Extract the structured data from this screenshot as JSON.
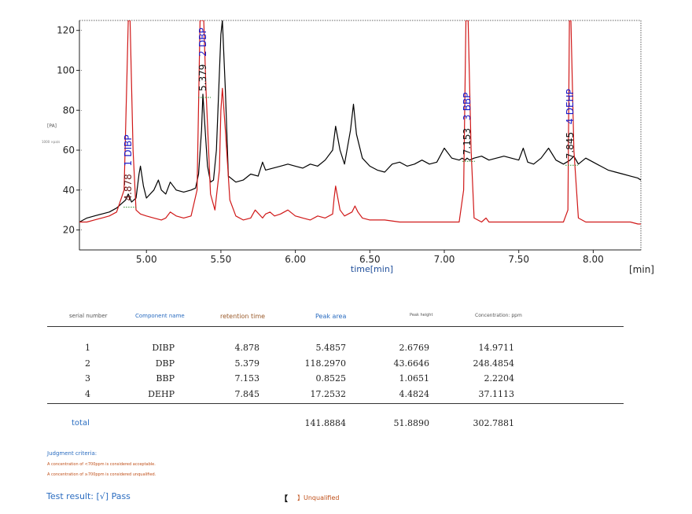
{
  "chart_data": {
    "type": "line",
    "xlabel": "time[min]",
    "x_unit_label": "[min]",
    "ylabel": "[PA]",
    "xlim": [
      4.55,
      8.32
    ],
    "ylim": [
      10,
      125
    ],
    "x_ticks": [
      "5.00",
      "5.50",
      "6.00",
      "6.50",
      "7.00",
      "7.50",
      "8.00"
    ],
    "y_ticks": [
      "20",
      "40",
      "60",
      "80",
      "100",
      "120"
    ],
    "grid": false,
    "series": [
      {
        "color": "#000000",
        "x": [
          4.55,
          4.6,
          4.65,
          4.7,
          4.75,
          4.8,
          4.83,
          4.86,
          4.878,
          4.9,
          4.93,
          4.95,
          4.96,
          4.98,
          5.0,
          5.05,
          5.08,
          5.1,
          5.13,
          5.16,
          5.2,
          5.25,
          5.3,
          5.33,
          5.35,
          5.37,
          5.379,
          5.39,
          5.41,
          5.43,
          5.45,
          5.47,
          5.5,
          5.51,
          5.53,
          5.55,
          5.6,
          5.65,
          5.7,
          5.75,
          5.78,
          5.8,
          5.85,
          5.9,
          5.95,
          6.0,
          6.05,
          6.1,
          6.15,
          6.2,
          6.25,
          6.27,
          6.3,
          6.33,
          6.37,
          6.39,
          6.41,
          6.45,
          6.5,
          6.55,
          6.6,
          6.65,
          6.7,
          6.75,
          6.8,
          6.85,
          6.9,
          6.95,
          7.0,
          7.05,
          7.1,
          7.12,
          7.14,
          7.153,
          7.17,
          7.2,
          7.25,
          7.3,
          7.35,
          7.4,
          7.45,
          7.5,
          7.53,
          7.56,
          7.6,
          7.65,
          7.7,
          7.75,
          7.8,
          7.845,
          7.87,
          7.9,
          7.95,
          8.0,
          8.05,
          8.1,
          8.15,
          8.2,
          8.25,
          8.3,
          8.32
        ],
        "y": [
          24,
          26,
          27,
          28,
          29,
          31,
          33,
          35,
          38,
          34,
          36,
          48,
          52,
          42,
          36,
          40,
          45,
          40,
          38,
          44,
          40,
          39,
          40,
          41,
          48,
          70,
          88,
          75,
          52,
          44,
          45,
          60,
          118,
          125,
          90,
          47,
          44,
          45,
          48,
          47,
          54,
          50,
          51,
          52,
          53,
          52,
          51,
          53,
          52,
          55,
          60,
          72,
          60,
          53,
          70,
          83,
          68,
          56,
          52,
          50,
          49,
          53,
          54,
          52,
          53,
          55,
          53,
          54,
          61,
          56,
          55,
          56,
          55,
          56,
          55,
          56,
          57,
          55,
          56,
          57,
          56,
          55,
          61,
          54,
          53,
          56,
          61,
          55,
          53,
          55,
          57,
          53,
          56,
          54,
          52,
          50,
          49,
          48,
          47,
          46,
          45
        ]
      },
      {
        "color": "#d01818",
        "x": [
          4.55,
          4.6,
          4.65,
          4.7,
          4.75,
          4.8,
          4.85,
          4.87,
          4.878,
          4.89,
          4.91,
          4.93,
          4.96,
          5.0,
          5.05,
          5.1,
          5.13,
          5.16,
          5.2,
          5.25,
          5.3,
          5.34,
          5.36,
          5.375,
          5.379,
          5.385,
          5.4,
          5.43,
          5.46,
          5.49,
          5.5,
          5.51,
          5.53,
          5.56,
          5.6,
          5.65,
          5.7,
          5.73,
          5.78,
          5.8,
          5.83,
          5.86,
          5.9,
          5.95,
          6.0,
          6.05,
          6.1,
          6.15,
          6.2,
          6.25,
          6.26,
          6.27,
          6.3,
          6.33,
          6.38,
          6.4,
          6.42,
          6.45,
          6.5,
          6.55,
          6.6,
          6.7,
          6.8,
          6.9,
          7.0,
          7.05,
          7.1,
          7.13,
          7.145,
          7.153,
          7.16,
          7.18,
          7.2,
          7.25,
          7.28,
          7.3,
          7.35,
          7.4,
          7.45,
          7.5,
          7.55,
          7.6,
          7.65,
          7.7,
          7.75,
          7.8,
          7.83,
          7.84,
          7.845,
          7.85,
          7.87,
          7.9,
          7.95,
          8.0,
          8.05,
          8.1,
          8.15,
          8.2,
          8.25,
          8.3,
          8.32
        ],
        "y": [
          24,
          24,
          25,
          26,
          27,
          29,
          40,
          100,
          125,
          125,
          60,
          30,
          28,
          27,
          26,
          25,
          26,
          29,
          27,
          26,
          27,
          40,
          125,
          125,
          125,
          125,
          90,
          38,
          30,
          50,
          80,
          91,
          70,
          35,
          27,
          25,
          26,
          30,
          26,
          28,
          29,
          27,
          28,
          30,
          27,
          26,
          25,
          27,
          26,
          28,
          36,
          42,
          30,
          27,
          29,
          32,
          29,
          26,
          25,
          25,
          25,
          24,
          24,
          24,
          24,
          24,
          24,
          40,
          125,
          125,
          125,
          60,
          26,
          24,
          26,
          24,
          24,
          24,
          24,
          24,
          24,
          24,
          24,
          24,
          24,
          24,
          30,
          125,
          125,
          125,
          60,
          26,
          24,
          24,
          24,
          24,
          24,
          24,
          24,
          23,
          23
        ]
      }
    ],
    "peak_labels": [
      {
        "rt": "4.878",
        "num": "1",
        "name": "DIBP",
        "x": 4.878,
        "y": 33
      },
      {
        "rt": "5.379",
        "num": "2",
        "name": "DBP",
        "x": 5.379,
        "y": 88
      },
      {
        "rt": "7.153",
        "num": "3",
        "name": "BBP",
        "x": 7.153,
        "y": 56
      },
      {
        "rt": "7.845",
        "num": "4",
        "name": "DEHP",
        "x": 7.845,
        "y": 54
      }
    ]
  },
  "chart_small_text": {
    "ylabel_tiny": "[PA]",
    "ylabel_tiny2": "1000 ×pa/s"
  },
  "table": {
    "headers": [
      "serial number",
      "Component name",
      "retention time",
      "Peak area",
      "Peak height",
      "Concentration: ppm"
    ],
    "rows": [
      [
        "1",
        "DIBP",
        "4.878",
        "5.4857",
        "2.6769",
        "14.9711"
      ],
      [
        "2",
        "DBP",
        "5.379",
        "118.2970",
        "43.6646",
        "248.4854"
      ],
      [
        "3",
        "BBP",
        "7.153",
        "0.8525",
        "1.0651",
        "2.2204"
      ],
      [
        "4",
        "DEHP",
        "7.845",
        "17.2532",
        "4.4824",
        "37.1113"
      ]
    ],
    "total_label": "total",
    "totals": [
      "141.8884",
      "51.8890",
      "302.7881"
    ]
  },
  "criteria": {
    "title": "Judgment criteria:",
    "line1": "A concentration of <700ppm is considered acceptable.",
    "line2": "A concentration of ≥700ppm is considered unqualified."
  },
  "test_result": {
    "label": "Test result: [√] Pass",
    "bracket": "【",
    "unqualified": "】Unqualified"
  },
  "colors": {
    "black_trace": "#000000",
    "red_trace": "#d01818",
    "accent_blue": "#2a6cc0",
    "peak_name_blue": "#1c1cc8",
    "warn_orange": "#c0501a"
  }
}
